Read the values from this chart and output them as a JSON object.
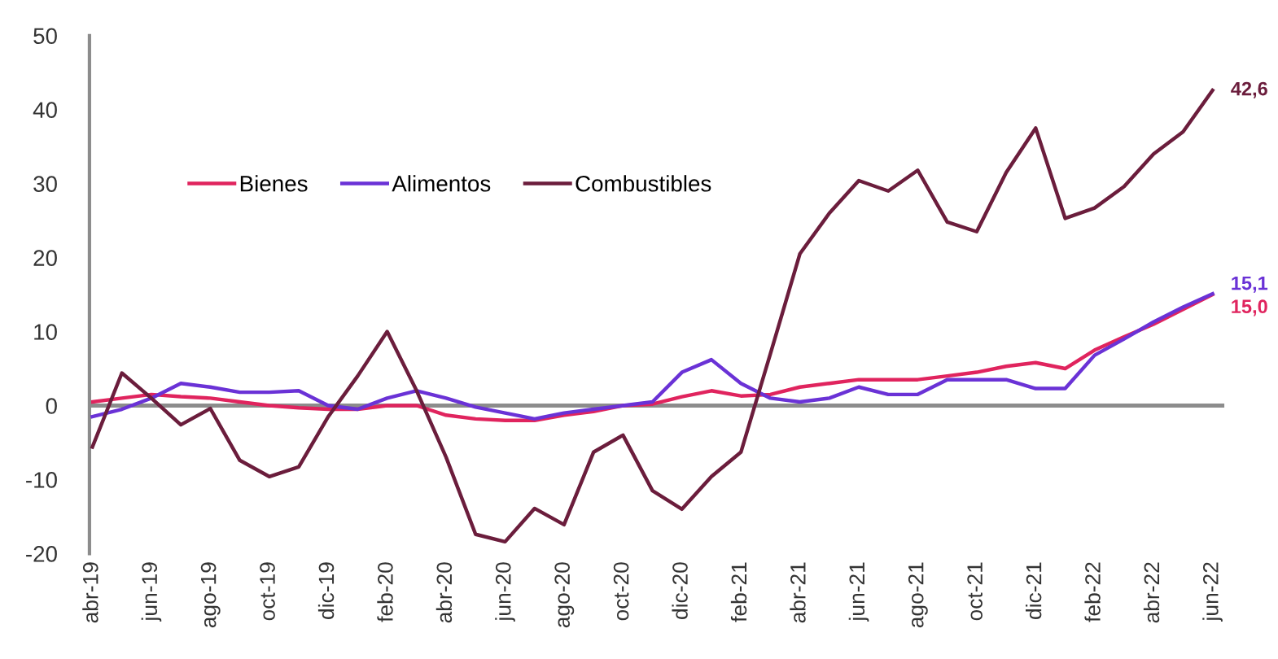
{
  "chart_data": {
    "type": "line",
    "categories": [
      "abr-19",
      null,
      "jun-19",
      null,
      "ago-19",
      null,
      "oct-19",
      null,
      "dic-19",
      null,
      "feb-20",
      null,
      "abr-20",
      null,
      "jun-20",
      null,
      "ago-20",
      null,
      "oct-20",
      null,
      "dic-20",
      null,
      "feb-21",
      null,
      "abr-21",
      null,
      "jun-21",
      null,
      "ago-21",
      null,
      "oct-21",
      null,
      "dic-21",
      null,
      "feb-22",
      null,
      "abr-22",
      null,
      "jun-22"
    ],
    "series": [
      {
        "name": "Bienes",
        "color": "#e0245e",
        "values": [
          0.5,
          1,
          1.5,
          1.2,
          1,
          0.5,
          0,
          -0.3,
          -0.5,
          -0.5,
          0,
          0,
          -1.3,
          -1.8,
          -2,
          -2,
          -1.3,
          -0.8,
          0,
          0.2,
          1.2,
          2,
          1.3,
          1.5,
          2.5,
          3,
          3.5,
          3.5,
          3.5,
          4,
          4.5,
          5.3,
          5.8,
          5,
          7.5,
          9.3,
          11,
          13,
          15.0
        ],
        "value_labels": [
          null,
          null,
          null,
          null,
          null,
          null,
          null,
          null,
          null,
          null,
          null,
          null,
          null,
          null,
          null,
          null,
          null,
          null,
          null,
          null,
          null,
          null,
          null,
          null,
          null,
          null,
          null,
          null,
          null,
          null,
          null,
          null,
          null,
          null,
          null,
          null,
          null,
          null,
          "15,0"
        ]
      },
      {
        "name": "Alimentos",
        "color": "#6a32d6",
        "values": [
          -1.5,
          -0.5,
          1,
          3,
          2.5,
          1.8,
          1.8,
          2,
          0,
          -0.5,
          1,
          2,
          1,
          -0.2,
          -1,
          -1.8,
          -1,
          -0.5,
          0,
          0.5,
          4.5,
          6.2,
          3,
          1,
          0.5,
          1,
          2.5,
          1.5,
          1.5,
          3.5,
          3.5,
          3.5,
          2.3,
          2.3,
          6.8,
          9,
          11.3,
          13.3,
          15.1
        ],
        "value_labels": [
          null,
          null,
          null,
          null,
          null,
          null,
          null,
          null,
          null,
          null,
          null,
          null,
          null,
          null,
          null,
          null,
          null,
          null,
          null,
          null,
          null,
          null,
          null,
          null,
          null,
          null,
          null,
          null,
          null,
          null,
          null,
          null,
          null,
          null,
          null,
          null,
          null,
          null,
          "15,1"
        ]
      },
      {
        "name": "Combustibles",
        "color": "#6b1d3c",
        "values": [
          -5.6,
          4.4,
          1,
          -2.6,
          -0.4,
          -7.4,
          -9.6,
          -8.3,
          -1.5,
          4,
          10,
          2,
          -7,
          -17.4,
          -18.4,
          -13.9,
          -16.1,
          -6.3,
          -4,
          -11.5,
          -14,
          -9.6,
          -6.3,
          7,
          20.5,
          26,
          30.4,
          29,
          31.8,
          24.8,
          23.5,
          31.5,
          37.5,
          25.3,
          26.7,
          29.6,
          34,
          37,
          42.6
        ],
        "value_labels": [
          null,
          null,
          null,
          null,
          null,
          null,
          null,
          null,
          null,
          null,
          null,
          null,
          null,
          null,
          null,
          null,
          null,
          null,
          null,
          null,
          null,
          null,
          null,
          null,
          null,
          null,
          null,
          null,
          null,
          null,
          null,
          null,
          null,
          null,
          null,
          null,
          null,
          null,
          "42,6"
        ]
      }
    ],
    "ylim": [
      -20,
      50
    ],
    "yticks": [
      -20,
      -10,
      0,
      10,
      20,
      30,
      40,
      50
    ],
    "ref_lines": [
      {
        "axis": "y",
        "value": 0,
        "color": "#8c8c8c"
      }
    ],
    "grid": false,
    "legend": "top left",
    "marker": "none",
    "line_style": "solid"
  }
}
